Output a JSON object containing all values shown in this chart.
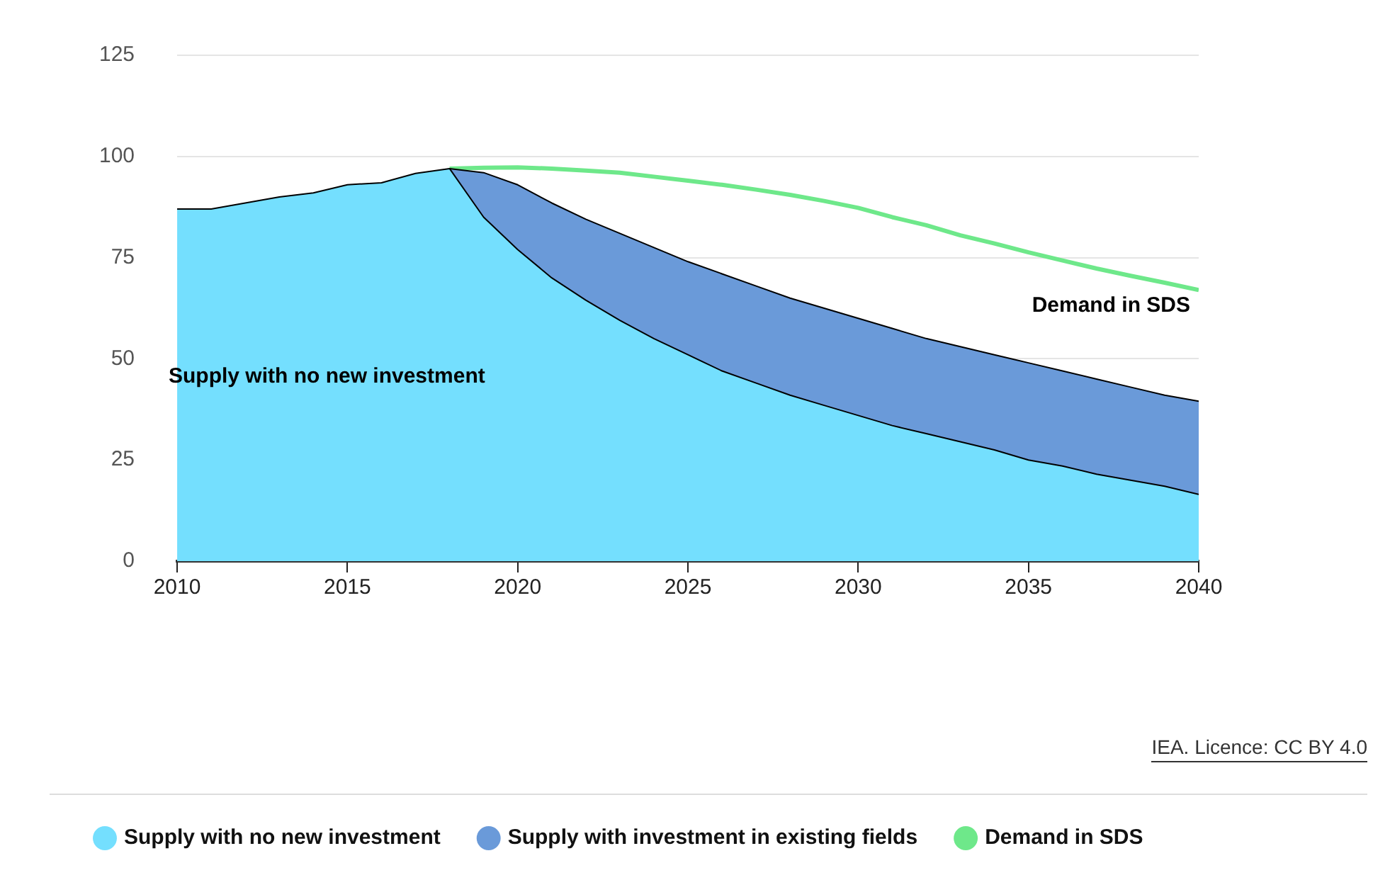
{
  "chart_data": {
    "type": "area",
    "stacked": true,
    "x": [
      2010,
      2011,
      2012,
      2013,
      2014,
      2015,
      2016,
      2017,
      2018,
      2019,
      2020,
      2021,
      2022,
      2023,
      2024,
      2025,
      2026,
      2027,
      2028,
      2029,
      2030,
      2031,
      2032,
      2033,
      2034,
      2035,
      2036,
      2037,
      2038,
      2039,
      2040
    ],
    "series": [
      {
        "name": "Supply with no new investment",
        "color": "#74dffe",
        "values": [
          87,
          87,
          88.5,
          90,
          91,
          93,
          93.5,
          95.8,
          97,
          85,
          77,
          70,
          64.5,
          59.5,
          55,
          51,
          47,
          44,
          41,
          38.5,
          36,
          33.5,
          31.5,
          29.5,
          27.5,
          25,
          23.5,
          21.5,
          20,
          18.5,
          16.5
        ]
      },
      {
        "name": "Supply with investment in existing fields",
        "color": "#6a9ad9",
        "values": [
          null,
          null,
          null,
          null,
          null,
          null,
          null,
          null,
          0,
          11,
          16,
          18.5,
          20,
          21.5,
          22.5,
          23,
          24,
          24,
          24,
          24,
          24,
          24,
          23.5,
          23.5,
          23.5,
          24,
          23.5,
          23.5,
          23,
          22.5,
          23
        ]
      },
      {
        "name": "Demand in SDS",
        "color": "#6ee88a",
        "type": "line",
        "values": [
          null,
          null,
          null,
          null,
          null,
          null,
          null,
          null,
          97,
          97.2,
          97.3,
          97,
          96.5,
          96,
          95,
          94,
          93,
          91.8,
          90.5,
          89,
          87.3,
          85,
          83,
          80.5,
          78.5,
          76.3,
          74.3,
          72.3,
          70.5,
          68.8,
          67
        ]
      }
    ],
    "xlim": [
      2010,
      2040
    ],
    "xticks": [
      2010,
      2015,
      2020,
      2025,
      2030,
      2035,
      2040
    ],
    "ylim": [
      0,
      125
    ],
    "yticks": [
      0,
      25,
      50,
      75,
      100,
      125
    ],
    "grid": "y",
    "legend": "bottom left",
    "marker": "none",
    "annotations": [
      "Supply with no new investment",
      "Demand in SDS",
      "IEA. Licence: CC BY 4.0"
    ]
  }
}
